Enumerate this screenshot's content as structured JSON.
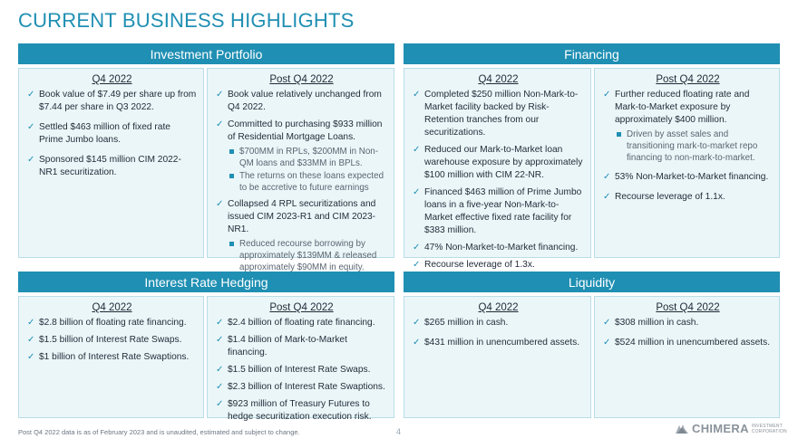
{
  "page": {
    "title": "CURRENT BUSINESS HIGHLIGHTS",
    "footnote": "Post Q4 2022 data is as of February 2023 and is unaudited, estimated and subject to change.",
    "page_number": "4",
    "logo": {
      "name": "CHIMERA",
      "sub_line1": "INVESTMENT",
      "sub_line2": "CORPORATION"
    }
  },
  "colors": {
    "accent": "#1f8fb3",
    "panel_bg": "#ebf6f9",
    "panel_border": "#b9dce7"
  },
  "investment_portfolio": {
    "header": "Investment Portfolio",
    "q4": {
      "title": "Q4 2022",
      "bullets": [
        "Book value of $7.49 per share up from $7.44 per share in Q3 2022.",
        "Settled $463 million of fixed rate Prime Jumbo loans.",
        "Sponsored $145 million CIM 2022-NR1 securitization."
      ]
    },
    "post": {
      "title": "Post Q4 2022",
      "b1": "Book value relatively unchanged from Q4 2022.",
      "b2": "Committed to purchasing $933 million of Residential Mortgage Loans.",
      "b2_sub1": "$700MM in RPLs, $200MM in Non-QM loans and $33MM in BPLs.",
      "b2_sub2": "The returns on these loans expected to be accretive to future earnings",
      "b3": "Collapsed 4 RPL securitizations and issued CIM 2023-R1 and CIM 2023-NR1.",
      "b3_sub1": "Reduced recourse borrowing by approximately $139MM & released approximately $90MM in equity."
    }
  },
  "financing": {
    "header": "Financing",
    "q4": {
      "title": "Q4 2022",
      "bullets": [
        "Completed $250 million Non-Mark-to-Market facility backed by Risk-Retention tranches from our securitizations.",
        "Reduced our Mark-to-Market loan warehouse exposure by approximately $100 million with CIM 22-NR.",
        "Financed $463 million of Prime Jumbo loans in a five-year Non-Mark-to-Market effective fixed rate facility for $383 million.",
        "47% Non-Market-to-Market financing.",
        "Recourse leverage of 1.3x."
      ]
    },
    "post": {
      "title": "Post Q4 2022",
      "b1": "Further reduced floating rate and Mark-to-Market exposure by approximately $400 million.",
      "b1_sub1": "Driven by asset sales and transitioning mark-to-market repo financing to non-mark-to-market.",
      "b2": "53% Non-Market-to-Market financing.",
      "b3": "Recourse leverage of 1.1x."
    }
  },
  "interest_rate_hedging": {
    "header": "Interest Rate Hedging",
    "q4": {
      "title": "Q4 2022",
      "bullets": [
        "$2.8 billion of floating rate financing.",
        "$1.5 billion of Interest Rate Swaps.",
        "$1 billion of Interest Rate Swaptions."
      ]
    },
    "post": {
      "title": "Post Q4 2022",
      "bullets": [
        "$2.4 billion of floating rate financing.",
        "$1.4 billion of Mark-to-Market financing.",
        "$1.5 billion of Interest Rate Swaps.",
        "$2.3 billion of Interest Rate Swaptions.",
        "$923 million of Treasury Futures to hedge securitization execution risk."
      ]
    }
  },
  "liquidity": {
    "header": "Liquidity",
    "q4": {
      "title": "Q4 2022",
      "bullets": [
        "$265 million in cash.",
        "$431 million in unencumbered assets."
      ]
    },
    "post": {
      "title": "Post Q4 2022",
      "bullets": [
        "$308 million in cash.",
        "$524 million in unencumbered assets."
      ]
    }
  }
}
